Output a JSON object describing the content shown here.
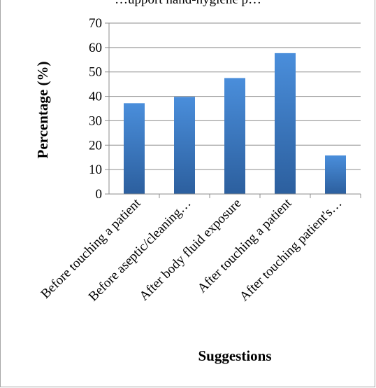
{
  "chart_data": {
    "type": "bar",
    "title": "…upport hand-hygiene p…",
    "xlabel": "Suggestions",
    "ylabel": "Percentage (%)",
    "categories": [
      "Before touching a patient",
      "Before aseptic/cleaning…",
      "After body fluid exposure",
      "After touching a patient",
      "After touching patient's…"
    ],
    "values": [
      37.2,
      39.8,
      47.5,
      57.7,
      15.8
    ],
    "ylim": [
      0,
      70
    ],
    "yticks": [
      "0",
      "10",
      "20",
      "30",
      "40",
      "50",
      "60",
      "70"
    ],
    "grid": true,
    "legend": "none",
    "colors": {
      "bar_top": "#4a8edb",
      "bar_bottom": "#2c5f9e",
      "grid": "#8c8c8c",
      "axis": "#8c8c8c"
    }
  }
}
